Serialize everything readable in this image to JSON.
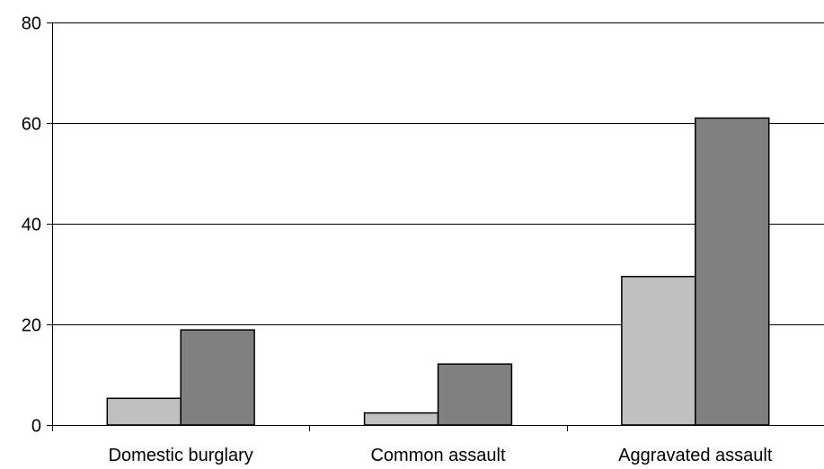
{
  "chart_data": {
    "type": "bar",
    "title": "",
    "xlabel": "",
    "ylabel": "",
    "categories": [
      "Domestic burglary",
      "Common assault",
      "Aggravated assault"
    ],
    "series": [
      {
        "color": "#c0c0c0",
        "values": [
          5.3,
          2.4,
          29.5
        ]
      },
      {
        "color": "#808080",
        "values": [
          18.9,
          12.1,
          61.0
        ]
      }
    ],
    "ylim": [
      0,
      80
    ],
    "yticks": [
      0,
      20,
      40,
      60,
      80
    ],
    "ytick_labels": [
      "0",
      "20",
      "40",
      "60",
      "80"
    ],
    "grid": true,
    "legend": "none"
  }
}
